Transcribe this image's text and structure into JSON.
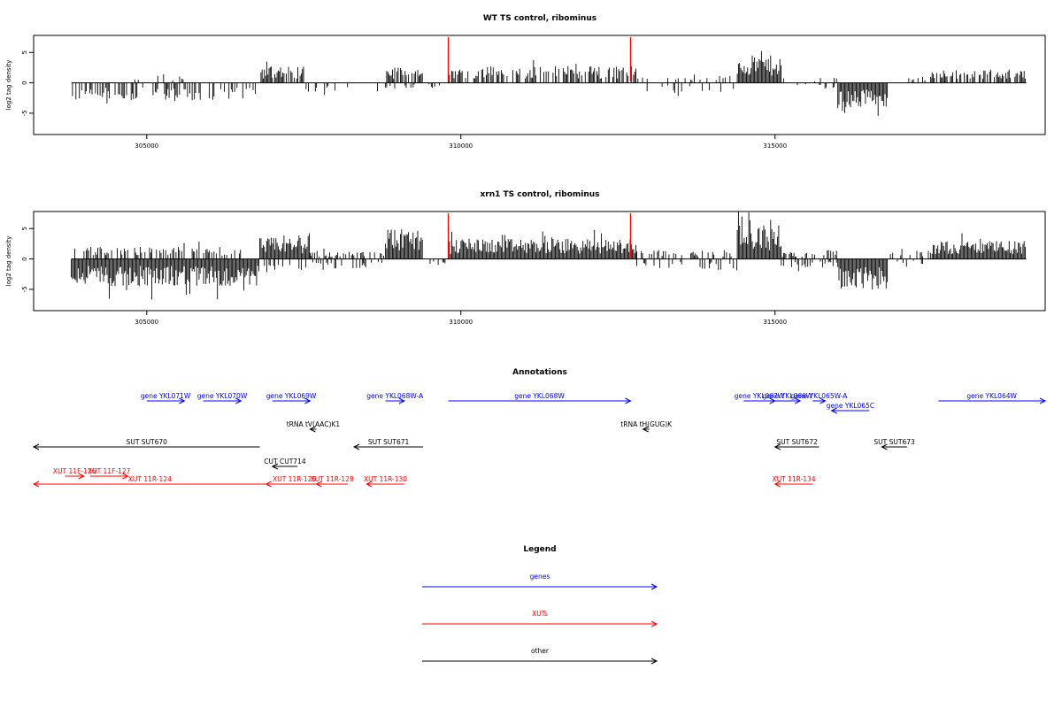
{
  "colors": {
    "signal": "#000000",
    "marker": "#ff0000",
    "genes": "#0000ff",
    "xuts": "#ff0000",
    "other": "#000000"
  },
  "chart_data": [
    {
      "type": "bar",
      "title": "WT TS control, ribominus",
      "ylabel": "log2 tag density",
      "xlim": [
        303200,
        319300
      ],
      "ylim": [
        -8.5,
        7.8
      ],
      "xticks": [
        305000,
        310000,
        315000
      ],
      "xtick_labels": [
        "305000",
        "310000",
        "315000"
      ],
      "yticks": [
        -5,
        0,
        5
      ],
      "ytick_labels": [
        "-5",
        "0",
        "5"
      ],
      "markers": [
        309800,
        312700
      ],
      "regions": [
        {
          "from": 303800,
          "to": 306800,
          "sign": -1,
          "amp": 3.0,
          "density": 0.45
        },
        {
          "from": 304700,
          "to": 305600,
          "sign": 1,
          "amp": 1.5,
          "density": 0.1
        },
        {
          "from": 306800,
          "to": 307500,
          "sign": 1,
          "amp": 2.8,
          "density": 0.8
        },
        {
          "from": 307500,
          "to": 308800,
          "sign": -1,
          "amp": 1.5,
          "density": 0.1
        },
        {
          "from": 308800,
          "to": 309400,
          "sign": 1,
          "amp": 2.5,
          "density": 0.8
        },
        {
          "from": 308800,
          "to": 309400,
          "sign": -1,
          "amp": 1.0,
          "density": 0.35
        },
        {
          "from": 309400,
          "to": 309800,
          "sign": -1,
          "amp": 1.0,
          "density": 0.15
        },
        {
          "from": 309800,
          "to": 312800,
          "sign": 1,
          "amp": 2.8,
          "density": 0.6
        },
        {
          "from": 312800,
          "to": 314400,
          "sign": 1,
          "amp": 1.2,
          "density": 0.15
        },
        {
          "from": 312800,
          "to": 314400,
          "sign": -1,
          "amp": 1.5,
          "density": 0.12
        },
        {
          "from": 314400,
          "to": 315100,
          "sign": 1,
          "amp": 4.5,
          "density": 1.0
        },
        {
          "from": 315100,
          "to": 316000,
          "sign": 1,
          "amp": 1.0,
          "density": 0.15
        },
        {
          "from": 315100,
          "to": 316000,
          "sign": -1,
          "amp": 1.0,
          "density": 0.15
        },
        {
          "from": 316000,
          "to": 316800,
          "sign": -1,
          "amp": 4.0,
          "density": 1.0
        },
        {
          "from": 316800,
          "to": 317500,
          "sign": 1,
          "amp": 1.0,
          "density": 0.12
        },
        {
          "from": 317500,
          "to": 319000,
          "sign": 1,
          "amp": 2.2,
          "density": 0.6
        }
      ]
    },
    {
      "type": "bar",
      "title": "xrn1 TS control, ribominus",
      "ylabel": "log2 tag density",
      "xlim": [
        303200,
        319300
      ],
      "ylim": [
        -8.5,
        7.8
      ],
      "xticks": [
        305000,
        310000,
        315000
      ],
      "xtick_labels": [
        "305000",
        "310000",
        "315000"
      ],
      "yticks": [
        -5,
        0,
        5
      ],
      "ytick_labels": [
        "-5",
        "0",
        "5"
      ],
      "markers": [
        309800,
        312700
      ],
      "regions": [
        {
          "from": 303800,
          "to": 306800,
          "sign": -1,
          "amp": 4.5,
          "density": 1.0
        },
        {
          "from": 303800,
          "to": 306500,
          "sign": 1,
          "amp": 2.0,
          "density": 0.5
        },
        {
          "from": 306800,
          "to": 307600,
          "sign": 1,
          "amp": 3.5,
          "density": 1.0
        },
        {
          "from": 306800,
          "to": 308800,
          "sign": -1,
          "amp": 1.8,
          "density": 0.35
        },
        {
          "from": 307600,
          "to": 308800,
          "sign": 1,
          "amp": 1.2,
          "density": 0.3
        },
        {
          "from": 308800,
          "to": 309400,
          "sign": 1,
          "amp": 5.0,
          "density": 1.0
        },
        {
          "from": 309400,
          "to": 309800,
          "sign": -1,
          "amp": 1.0,
          "density": 0.2
        },
        {
          "from": 309800,
          "to": 312800,
          "sign": 1,
          "amp": 3.3,
          "density": 1.0
        },
        {
          "from": 312800,
          "to": 314400,
          "sign": 1,
          "amp": 1.5,
          "density": 0.3
        },
        {
          "from": 312800,
          "to": 314400,
          "sign": -1,
          "amp": 2.0,
          "density": 0.3
        },
        {
          "from": 314400,
          "to": 315100,
          "sign": 1,
          "amp": 5.5,
          "density": 1.0
        },
        {
          "from": 315100,
          "to": 316000,
          "sign": -1,
          "amp": 1.5,
          "density": 0.4
        },
        {
          "from": 315100,
          "to": 316000,
          "sign": 1,
          "amp": 1.5,
          "density": 0.4
        },
        {
          "from": 316000,
          "to": 316800,
          "sign": -1,
          "amp": 5.0,
          "density": 1.0
        },
        {
          "from": 316800,
          "to": 317500,
          "sign": 1,
          "amp": 1.5,
          "density": 0.4
        },
        {
          "from": 316800,
          "to": 317500,
          "sign": -1,
          "amp": 1.0,
          "density": 0.2
        },
        {
          "from": 317500,
          "to": 319000,
          "sign": 1,
          "amp": 3.0,
          "density": 1.0
        }
      ]
    }
  ],
  "annotations": {
    "title": "Annotations",
    "xlim": [
      303200,
      319300
    ],
    "features": [
      {
        "label": "gene YKL071W",
        "type": "genes",
        "strand": "+",
        "start": 305000,
        "end": 305600,
        "row": 0
      },
      {
        "label": "gene YKL070W",
        "type": "genes",
        "strand": "+",
        "start": 305900,
        "end": 306500,
        "row": 0
      },
      {
        "label": "gene YKL069W",
        "type": "genes",
        "strand": "+",
        "start": 307000,
        "end": 307600,
        "row": 0
      },
      {
        "label": "gene YKL068W-A",
        "type": "genes",
        "strand": "+",
        "start": 308800,
        "end": 309100,
        "row": 0
      },
      {
        "label": "gene YKL068W",
        "type": "genes",
        "strand": "+",
        "start": 309800,
        "end": 312700,
        "row": 0
      },
      {
        "label": "gene YKL067W",
        "type": "genes",
        "strand": "+",
        "start": 314500,
        "end": 315000,
        "row": 0
      },
      {
        "label": "gene YKL066W",
        "type": "genes",
        "strand": "+",
        "start": 315000,
        "end": 315400,
        "row": 0
      },
      {
        "label": "gene YKL065W-A",
        "type": "genes",
        "strand": "+",
        "start": 315600,
        "end": 315800,
        "row": 0
      },
      {
        "label": "gene YKL065C",
        "type": "genes",
        "strand": "-",
        "start": 315900,
        "end": 316500,
        "row": 1
      },
      {
        "label": "gene YKL064W",
        "type": "genes",
        "strand": "+",
        "start": 317600,
        "end": 319300,
        "row": 0
      },
      {
        "label": "tRNA tV(AAC)K1",
        "type": "other",
        "strand": "-",
        "start": 307600,
        "end": 307700,
        "row": 2
      },
      {
        "label": "tRNA tH(GUG)K",
        "type": "other",
        "strand": "-",
        "start": 312900,
        "end": 313000,
        "row": 2
      },
      {
        "label": "SUT SUT670",
        "type": "other",
        "strand": "-",
        "start": 303200,
        "end": 306800,
        "row": 3
      },
      {
        "label": "SUT SUT671",
        "type": "other",
        "strand": "-",
        "start": 308300,
        "end": 309400,
        "row": 3
      },
      {
        "label": "SUT SUT672",
        "type": "other",
        "strand": "-",
        "start": 315000,
        "end": 315700,
        "row": 3
      },
      {
        "label": "SUT SUT673",
        "type": "other",
        "strand": "-",
        "start": 316700,
        "end": 317100,
        "row": 3
      },
      {
        "label": "CUT CUT714",
        "type": "other",
        "strand": "-",
        "start": 307000,
        "end": 307400,
        "row": 4
      },
      {
        "label": "XUT 11F-126",
        "type": "xuts",
        "strand": "+",
        "start": 303700,
        "end": 304000,
        "row": 5
      },
      {
        "label": "XUT 11F-127",
        "type": "xuts",
        "strand": "+",
        "start": 304100,
        "end": 304700,
        "row": 5
      },
      {
        "label": "XUT 11R-124",
        "type": "xuts",
        "strand": "-",
        "start": 303200,
        "end": 306900,
        "row": 6
      },
      {
        "label": "XUT 11R-125",
        "type": "xuts",
        "strand": "-",
        "start": 306900,
        "end": 307800,
        "row": 6
      },
      {
        "label": "XUT 11R-128",
        "type": "xuts",
        "strand": "-",
        "start": 307700,
        "end": 308200,
        "row": 6
      },
      {
        "label": "XUT 11R-130",
        "type": "xuts",
        "strand": "-",
        "start": 308500,
        "end": 309100,
        "row": 6
      },
      {
        "label": "XUT 11R-134",
        "type": "xuts",
        "strand": "-",
        "start": 315000,
        "end": 315600,
        "row": 6
      }
    ]
  },
  "legend": {
    "title": "Legend",
    "items": [
      {
        "label": "genes",
        "type": "genes"
      },
      {
        "label": "XUTs",
        "type": "xuts"
      },
      {
        "label": "other",
        "type": "other"
      }
    ]
  }
}
